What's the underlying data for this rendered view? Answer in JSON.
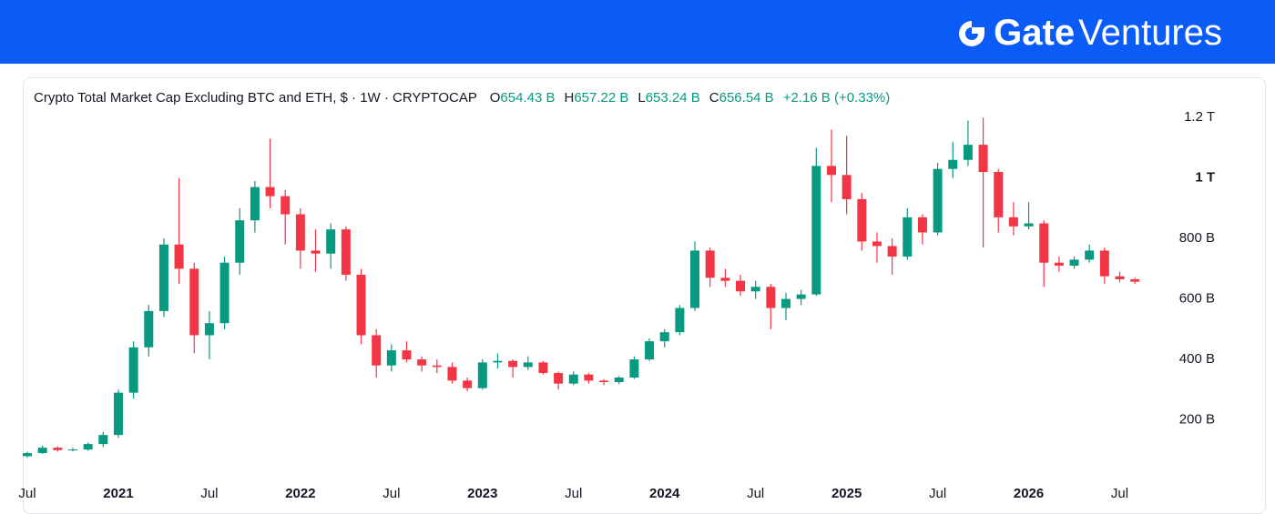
{
  "header": {
    "brand_bold": "Gate",
    "brand": "Ventures"
  },
  "chart_data": {
    "type": "candlestick",
    "title": "Crypto Total Market Cap Excluding BTC and ETH, $ · 1W · CRYPTOCAP",
    "legend_values": [
      {
        "key": "O",
        "text": "654.43 B"
      },
      {
        "key": "H",
        "text": "657.22 B"
      },
      {
        "key": "L",
        "text": "653.24 B"
      },
      {
        "key": "C",
        "text": "656.54 B"
      },
      {
        "key": "",
        "text": "+2.16 B (+0.33%)"
      }
    ],
    "x": [
      "2020-07",
      "2020-08",
      "2020-09",
      "2020-10",
      "2020-11",
      "2020-12",
      "2021-01",
      "2021-02",
      "2021-03",
      "2021-04",
      "2021-05",
      "2021-06",
      "2021-07",
      "2021-08",
      "2021-09",
      "2021-10",
      "2021-11",
      "2021-12",
      "2022-01",
      "2022-02",
      "2022-03",
      "2022-04",
      "2022-05",
      "2022-06",
      "2022-07",
      "2022-08",
      "2022-09",
      "2022-10",
      "2022-11",
      "2022-12",
      "2023-01",
      "2023-02",
      "2023-03",
      "2023-04",
      "2023-05",
      "2023-06",
      "2023-07",
      "2023-08",
      "2023-09",
      "2023-10",
      "2023-11",
      "2023-12",
      "2024-01",
      "2024-02",
      "2024-03",
      "2024-04",
      "2024-05",
      "2024-06",
      "2024-07",
      "2024-08",
      "2024-09",
      "2024-10",
      "2024-11",
      "2024-12",
      "2025-01",
      "2025-02",
      "2025-03",
      "2025-04",
      "2025-05",
      "2025-06",
      "2025-07",
      "2025-08",
      "2025-09",
      "2025-10",
      "2025-11",
      "2025-12",
      "2026-01",
      "2026-02",
      "2026-03",
      "2026-04",
      "2026-05",
      "2026-06",
      "2026-07",
      "2026-08"
    ],
    "open": [
      80,
      90,
      108,
      100,
      102,
      120,
      150,
      290,
      440,
      560,
      780,
      700,
      480,
      520,
      720,
      860,
      970,
      940,
      880,
      760,
      750,
      830,
      680,
      480,
      380,
      430,
      400,
      380,
      375,
      330,
      305,
      390,
      395,
      375,
      390,
      355,
      320,
      350,
      330,
      325,
      340,
      400,
      460,
      490,
      570,
      760,
      670,
      660,
      625,
      640,
      570,
      600,
      615,
      1040,
      1010,
      930,
      790,
      775,
      740,
      870,
      820,
      1030,
      1060,
      1110,
      1020,
      870,
      840,
      850,
      720,
      710,
      730,
      760,
      675,
      665
    ],
    "high": [
      95,
      115,
      112,
      108,
      125,
      160,
      300,
      460,
      580,
      800,
      1000,
      720,
      560,
      740,
      900,
      990,
      1130,
      960,
      900,
      830,
      850,
      840,
      700,
      500,
      450,
      460,
      410,
      400,
      390,
      340,
      400,
      420,
      400,
      410,
      395,
      360,
      360,
      355,
      335,
      345,
      410,
      470,
      500,
      580,
      790,
      770,
      700,
      680,
      660,
      650,
      620,
      630,
      1100,
      1160,
      1140,
      950,
      820,
      800,
      900,
      880,
      1050,
      1120,
      1190,
      1200,
      1030,
      920,
      920,
      860,
      740,
      740,
      780,
      770,
      690,
      670
    ],
    "low": [
      75,
      88,
      95,
      96,
      98,
      110,
      140,
      270,
      410,
      540,
      650,
      420,
      400,
      500,
      680,
      820,
      900,
      780,
      700,
      690,
      700,
      660,
      450,
      340,
      360,
      390,
      360,
      355,
      320,
      295,
      300,
      370,
      340,
      365,
      350,
      300,
      315,
      320,
      315,
      318,
      335,
      395,
      440,
      480,
      560,
      640,
      640,
      610,
      600,
      500,
      530,
      580,
      610,
      920,
      880,
      760,
      720,
      680,
      730,
      780,
      810,
      1000,
      1040,
      770,
      820,
      810,
      830,
      640,
      690,
      700,
      720,
      650,
      655,
      650
    ],
    "close": [
      90,
      108,
      100,
      102,
      120,
      150,
      290,
      440,
      560,
      780,
      700,
      480,
      520,
      720,
      860,
      970,
      940,
      880,
      760,
      750,
      830,
      680,
      480,
      380,
      430,
      400,
      380,
      375,
      330,
      305,
      390,
      395,
      375,
      390,
      355,
      320,
      350,
      330,
      325,
      340,
      400,
      460,
      490,
      570,
      760,
      670,
      660,
      625,
      640,
      570,
      600,
      615,
      1040,
      1010,
      930,
      790,
      775,
      740,
      870,
      820,
      1030,
      1060,
      1110,
      1020,
      870,
      840,
      850,
      720,
      710,
      730,
      760,
      675,
      665,
      657
    ],
    "up_color": "#089981",
    "down_color": "#f23645",
    "xticks": [
      {
        "value": "2020-07",
        "label": "Jul"
      },
      {
        "value": "2021-01",
        "label": "2021"
      },
      {
        "value": "2021-07",
        "label": "Jul"
      },
      {
        "value": "2022-01",
        "label": "2022"
      },
      {
        "value": "2022-07",
        "label": "Jul"
      },
      {
        "value": "2023-01",
        "label": "2023"
      },
      {
        "value": "2023-07",
        "label": "Jul"
      },
      {
        "value": "2024-01",
        "label": "2024"
      },
      {
        "value": "2024-07",
        "label": "Jul"
      },
      {
        "value": "2025-01",
        "label": "2025"
      },
      {
        "value": "2025-07",
        "label": "Jul"
      },
      {
        "value": "2026-01",
        "label": "2026"
      },
      {
        "value": "2026-07",
        "label": "Jul"
      }
    ],
    "ylim": [
      0,
      1330
    ],
    "yticks": [
      {
        "value": 200,
        "label": "200 B"
      },
      {
        "value": 400,
        "label": "400 B"
      },
      {
        "value": 600,
        "label": "600 B"
      },
      {
        "value": 800,
        "label": "800 B"
      },
      {
        "value": 1000,
        "label": "1 T"
      },
      {
        "value": 1200,
        "label": "1.2 T"
      }
    ]
  }
}
